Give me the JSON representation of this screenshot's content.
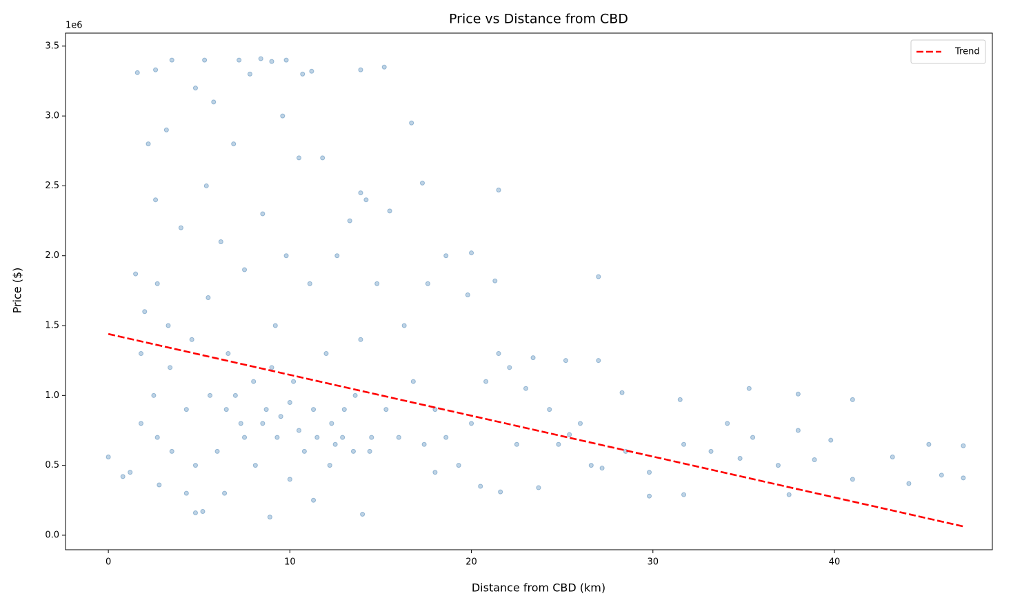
{
  "chart_data": {
    "type": "scatter",
    "title": "Price vs Distance from CBD",
    "x_label": "Distance from CBD (km)",
    "y_label": "Price ($)",
    "y_offset_label": "1e6",
    "xlim": [
      -2.36,
      48.7
    ],
    "ylim": [
      -104000,
      3593000
    ],
    "xticks": [
      0,
      10,
      20,
      30,
      40
    ],
    "yticks": [
      {
        "value": 0,
        "label": "0.0"
      },
      {
        "value": 500000,
        "label": "0.5"
      },
      {
        "value": 1000000,
        "label": "1.0"
      },
      {
        "value": 1500000,
        "label": "1.5"
      },
      {
        "value": 2000000,
        "label": "2.0"
      },
      {
        "value": 2500000,
        "label": "2.5"
      },
      {
        "value": 3000000,
        "label": "3.0"
      },
      {
        "value": 3500000,
        "label": "3.5"
      }
    ],
    "legend": "upper right",
    "series": [
      {
        "color": "#4682b4",
        "x": [
          0,
          0.8,
          1.2,
          1.5,
          1.6,
          1.8,
          1.8,
          2.0,
          2.2,
          2.5,
          2.6,
          2.6,
          2.7,
          2.7,
          2.8,
          3.2,
          3.3,
          3.4,
          3.5,
          3.5,
          4.0,
          4.3,
          4.3,
          4.6,
          4.8,
          4.8,
          4.8,
          5.2,
          5.3,
          5.4,
          5.5,
          5.6,
          5.8,
          6.0,
          6.2,
          6.4,
          6.6,
          6.9,
          7.2,
          7.3,
          7.5,
          7.8,
          8.0,
          8.1,
          8.4,
          8.5,
          8.7,
          8.9,
          9.0,
          9.2,
          9.3,
          9.6,
          9.8,
          9.8,
          10.0,
          10.2,
          10.5,
          10.7,
          10.8,
          11.1,
          11.2,
          11.3,
          11.3,
          11.8,
          12.0,
          12.2,
          12.6,
          12.9,
          13.3,
          13.6,
          13.9,
          13.9,
          13.9,
          14.0,
          14.2,
          14.4,
          14.8,
          15.2,
          15.3,
          15.5,
          16.0,
          16.3,
          16.7,
          16.8,
          17.3,
          17.4,
          17.6,
          18.0,
          18.0,
          18.6,
          18.6,
          19.3,
          19.8,
          20.0,
          20.0,
          20.5,
          20.8,
          21.3,
          21.5,
          21.5,
          21.6,
          22.1,
          22.5,
          23.0,
          23.4,
          23.7,
          24.3,
          24.8,
          25.2,
          25.4,
          26.0,
          26.6,
          27.0,
          27.0,
          27.2,
          28.3,
          28.5,
          29.8,
          29.8,
          31.5,
          31.7,
          31.7,
          33.2,
          34.1,
          34.8,
          35.3,
          35.5,
          36.9,
          37.5,
          38.0,
          38.0,
          38.9,
          39.8,
          41.0,
          41.0,
          43.2,
          44.1,
          45.2,
          45.9,
          47.1,
          47.1,
          6.5,
          7.5,
          8.5,
          9.5,
          10.5,
          11.5,
          12.5,
          13.5,
          14.5,
          12.3,
          13.0,
          7.0,
          9.0,
          10.0
        ],
        "values": [
          560000,
          420000,
          450000,
          1870000,
          3310000,
          1300000,
          800000,
          1600000,
          2800000,
          1000000,
          3330000,
          2400000,
          1800000,
          700000,
          360000,
          2900000,
          1500000,
          1200000,
          3400000,
          600000,
          2200000,
          900000,
          300000,
          1400000,
          3200000,
          500000,
          160000,
          170000,
          3400000,
          2500000,
          1700000,
          1000000,
          3100000,
          600000,
          2100000,
          300000,
          1300000,
          2800000,
          3400000,
          800000,
          1900000,
          3300000,
          1100000,
          500000,
          3410000,
          2300000,
          900000,
          130000,
          3390000,
          1500000,
          700000,
          3000000,
          3400000,
          2000000,
          400000,
          1100000,
          2700000,
          3300000,
          600000,
          1800000,
          3320000,
          900000,
          250000,
          2700000,
          1300000,
          500000,
          2000000,
          700000,
          2250000,
          1000000,
          3330000,
          2450000,
          1400000,
          150000,
          2400000,
          600000,
          1800000,
          3350000,
          900000,
          2320000,
          700000,
          1500000,
          2950000,
          1100000,
          2520000,
          650000,
          1800000,
          900000,
          450000,
          2000000,
          700000,
          500000,
          1720000,
          2020000,
          800000,
          350000,
          1100000,
          1820000,
          2470000,
          1300000,
          310000,
          1200000,
          650000,
          1050000,
          1270000,
          340000,
          900000,
          650000,
          1250000,
          720000,
          800000,
          500000,
          1850000,
          1250000,
          480000,
          1020000,
          600000,
          450000,
          280000,
          970000,
          650000,
          290000,
          600000,
          800000,
          550000,
          1050000,
          700000,
          500000,
          290000,
          1010000,
          750000,
          540000,
          680000,
          970000,
          400000,
          560000,
          370000,
          650000,
          430000,
          640000,
          410000,
          900000,
          700000,
          800000,
          850000,
          750000,
          700000,
          650000,
          600000,
          700000,
          800000,
          900000,
          1000000,
          1200000,
          950000
        ]
      },
      {
        "type": "line",
        "name": "Trend",
        "color": "#ff0000",
        "dashed": true,
        "x": [
          0,
          47.2
        ],
        "values": [
          1440000,
          60000
        ]
      }
    ]
  }
}
